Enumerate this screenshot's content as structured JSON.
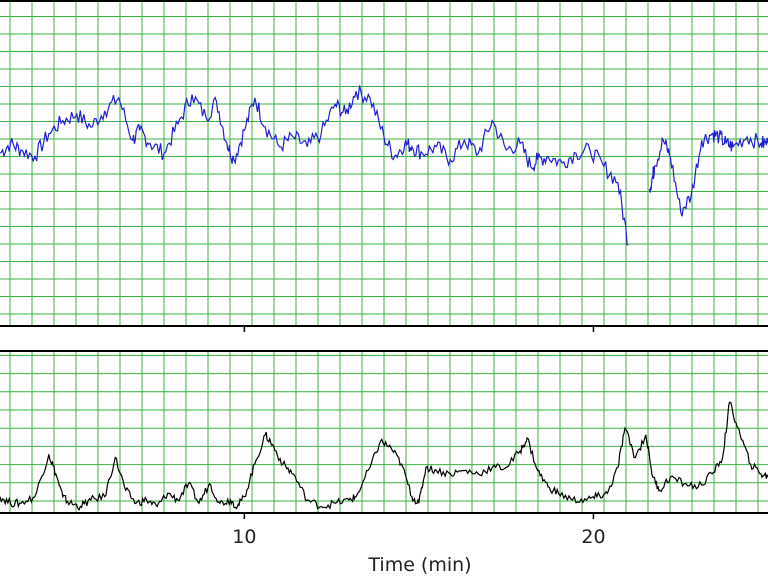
{
  "chart_data": [
    {
      "type": "line",
      "panel": "top",
      "title": "",
      "xlabel": "",
      "ylabel": "",
      "xlim": [
        3,
        25
      ],
      "ylim": [
        0,
        10
      ],
      "grid": true,
      "colors": {
        "series": "#1f1fd0",
        "grid": "#3cb043",
        "axes": "#000000"
      },
      "series": [
        {
          "x": [
            3.0,
            3.3,
            3.6,
            4.0,
            4.4,
            4.8,
            5.2,
            5.6,
            6.0,
            6.4,
            6.8,
            7.0,
            7.3,
            7.7,
            8.1,
            8.5,
            8.9,
            9.2,
            9.5,
            9.7,
            10.0,
            10.3,
            10.6,
            11.0,
            11.4,
            11.8,
            12.2,
            12.6,
            12.9,
            13.2,
            13.6,
            14.0,
            14.3,
            14.6,
            14.8,
            15.1,
            15.5,
            15.9,
            16.3,
            16.7,
            17.1,
            17.5,
            17.9,
            18.2,
            18.4,
            18.7,
            19.1,
            19.5,
            19.9,
            20.3,
            20.7,
            21.0,
            21.3,
            21.6,
            21.7,
            21.75,
            22.0,
            22.2,
            22.5,
            22.8,
            23.1,
            23.4,
            23.6,
            23.8,
            24.0,
            24.4,
            24.8,
            25.0
          ],
          "y": [
            5.3,
            5.6,
            5.4,
            5.2,
            5.9,
            6.3,
            6.5,
            6.1,
            6.6,
            7.0,
            5.7,
            6.0,
            5.6,
            5.3,
            6.2,
            7.1,
            6.4,
            6.9,
            5.6,
            5.1,
            6.0,
            7.0,
            6.1,
            5.5,
            5.8,
            5.5,
            5.9,
            6.8,
            6.5,
            7.2,
            7.0,
            5.8,
            5.2,
            5.6,
            5.5,
            5.3,
            5.5,
            5.1,
            5.7,
            5.3,
            6.3,
            5.4,
            5.6,
            4.9,
            5.1,
            5.2,
            5.0,
            5.3,
            5.4,
            4.9,
            4.4,
            2.5,
            null,
            4.2,
            4.6,
            4.9,
            5.7,
            5.2,
            3.5,
            4.0,
            5.7,
            5.9,
            5.8,
            5.6,
            5.5,
            5.8,
            5.6,
            5.6
          ]
        }
      ]
    },
    {
      "type": "line",
      "panel": "bottom",
      "title": "",
      "xlabel": "Time (min)",
      "ylabel": "",
      "xlim": [
        3,
        25
      ],
      "ylim": [
        0,
        5
      ],
      "xticks": [
        10,
        20
      ],
      "grid": true,
      "colors": {
        "series": "#000000",
        "grid": "#3cb043",
        "axes": "#000000"
      },
      "series": [
        {
          "x": [
            3.0,
            3.3,
            3.6,
            4.0,
            4.4,
            4.6,
            4.8,
            5.0,
            5.3,
            5.6,
            6.0,
            6.3,
            6.6,
            6.9,
            7.2,
            7.5,
            7.8,
            8.1,
            8.4,
            8.7,
            9.0,
            9.3,
            9.6,
            9.8,
            10.0,
            10.3,
            10.6,
            10.8,
            11.1,
            11.4,
            11.8,
            12.2,
            12.6,
            13.0,
            13.2,
            13.6,
            13.9,
            14.2,
            14.5,
            14.8,
            15.0,
            15.2,
            15.5,
            15.9,
            16.3,
            16.7,
            17.1,
            17.5,
            17.9,
            18.1,
            18.4,
            18.7,
            19.0,
            19.4,
            19.8,
            20.1,
            20.4,
            20.7,
            20.9,
            21.2,
            21.5,
            21.7,
            21.9,
            22.2,
            22.6,
            23.0,
            23.4,
            23.7,
            23.9,
            24.2,
            24.5,
            24.8,
            25.0
          ],
          "y": [
            0.5,
            0.3,
            0.3,
            0.5,
            1.8,
            1.2,
            0.5,
            0.3,
            0.2,
            0.4,
            0.5,
            1.7,
            0.7,
            0.3,
            0.4,
            0.2,
            0.6,
            0.4,
            0.9,
            0.3,
            0.9,
            0.3,
            0.4,
            0.2,
            0.5,
            1.5,
            2.4,
            2.1,
            1.5,
            1.2,
            0.4,
            0.2,
            0.3,
            0.4,
            0.5,
            1.4,
            2.2,
            2.0,
            1.5,
            0.5,
            0.3,
            1.4,
            1.3,
            1.2,
            1.3,
            1.2,
            1.4,
            1.4,
            1.9,
            2.3,
            1.3,
            0.8,
            0.6,
            0.4,
            0.4,
            0.5,
            0.6,
            1.4,
            2.6,
            1.7,
            2.4,
            1.1,
            0.7,
            1.1,
            0.9,
            0.8,
            1.2,
            1.7,
            3.4,
            2.4,
            1.5,
            1.2,
            1.1
          ]
        }
      ]
    }
  ]
}
